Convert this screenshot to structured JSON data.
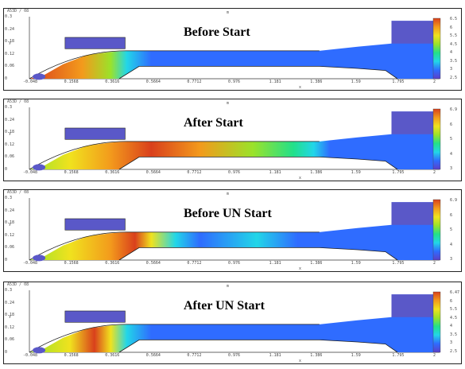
{
  "panels": [
    {
      "title": "Before Start",
      "header_left": "A53D / 08",
      "header_mid": "m",
      "colorbar_ticks": [
        "6.5",
        "6",
        "5.5",
        "4.5",
        "4",
        "3.5",
        "3",
        "2.5"
      ],
      "flow": "pre-start"
    },
    {
      "title": "After Start",
      "header_left": "A53D / 08",
      "header_mid": "m",
      "colorbar_ticks": [
        "6.9",
        "6",
        "5",
        "4",
        "3"
      ],
      "flow": "started"
    },
    {
      "title": "Before UN Start",
      "header_left": "A53D / 08",
      "header_mid": "m",
      "colorbar_ticks": [
        "6.9",
        "6",
        "5",
        "4",
        "3"
      ],
      "flow": "pre-unstart"
    },
    {
      "title": "After UN Start",
      "header_left": "A53D / 08",
      "header_mid": "m",
      "colorbar_ticks": [
        "6.47",
        "6",
        "5.5",
        "4.5",
        "4",
        "3.5",
        "3",
        "2.5"
      ],
      "flow": "unstarted"
    }
  ],
  "axes": {
    "y_ticks": [
      "0.3",
      "0.24",
      "0.18",
      "0.12",
      "0.06",
      "0"
    ],
    "x_ticks": [
      "-0.048",
      "0.1568",
      "0.3616",
      "0.5664",
      "0.7712",
      "0.976",
      "1.181",
      "1.386",
      "1.59",
      "1.795",
      "2"
    ],
    "x_label": "x",
    "y_label": "y"
  },
  "colors": {
    "solid": "#5a58c8",
    "outline": "#222222",
    "colormap": [
      "#5b3fc9",
      "#2f6cff",
      "#22d6e8",
      "#22e08a",
      "#9be22a",
      "#f0e21e",
      "#f39a1c",
      "#d9401c"
    ]
  }
}
